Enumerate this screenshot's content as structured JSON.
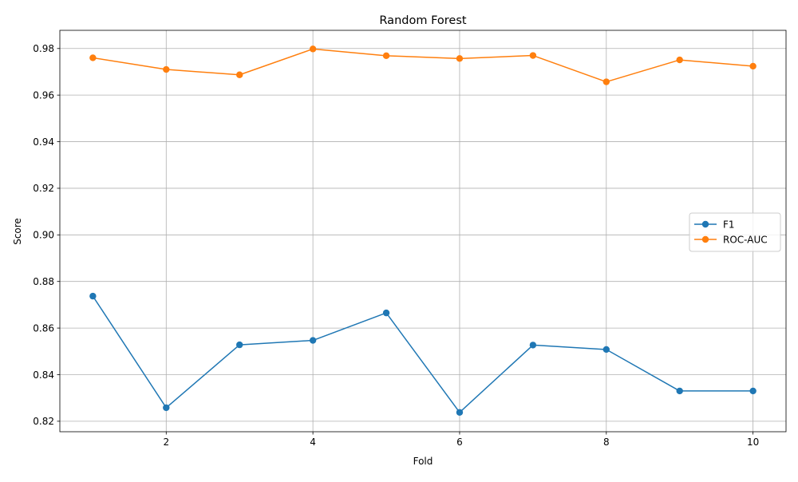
{
  "chart_data": {
    "type": "line",
    "title": "Random Forest",
    "xlabel": "Fold",
    "ylabel": "Score",
    "x": [
      1,
      2,
      3,
      4,
      5,
      6,
      7,
      8,
      9,
      10
    ],
    "xlim": [
      0.55,
      10.45
    ],
    "ylim": [
      0.8155,
      0.9878
    ],
    "xticks": [
      2,
      4,
      6,
      8,
      10
    ],
    "xtick_labels": [
      "2",
      "4",
      "6",
      "8",
      "10"
    ],
    "yticks": [
      0.82,
      0.84,
      0.86,
      0.88,
      0.9,
      0.92,
      0.94,
      0.96,
      0.98
    ],
    "ytick_labels": [
      "0.82",
      "0.84",
      "0.86",
      "0.88",
      "0.90",
      "0.92",
      "0.94",
      "0.96",
      "0.98"
    ],
    "grid": true,
    "legend_position": "center-right",
    "series": [
      {
        "name": "F1",
        "color": "#1f77b4",
        "marker": "circle",
        "values": [
          0.8737,
          0.8258,
          0.8528,
          0.8547,
          0.8665,
          0.8238,
          0.8527,
          0.8508,
          0.833,
          0.833
        ]
      },
      {
        "name": "ROC-AUC",
        "color": "#ff7f0e",
        "marker": "circle",
        "values": [
          0.976,
          0.971,
          0.9687,
          0.9798,
          0.9769,
          0.9757,
          0.977,
          0.9657,
          0.9751,
          0.9724
        ]
      }
    ]
  }
}
